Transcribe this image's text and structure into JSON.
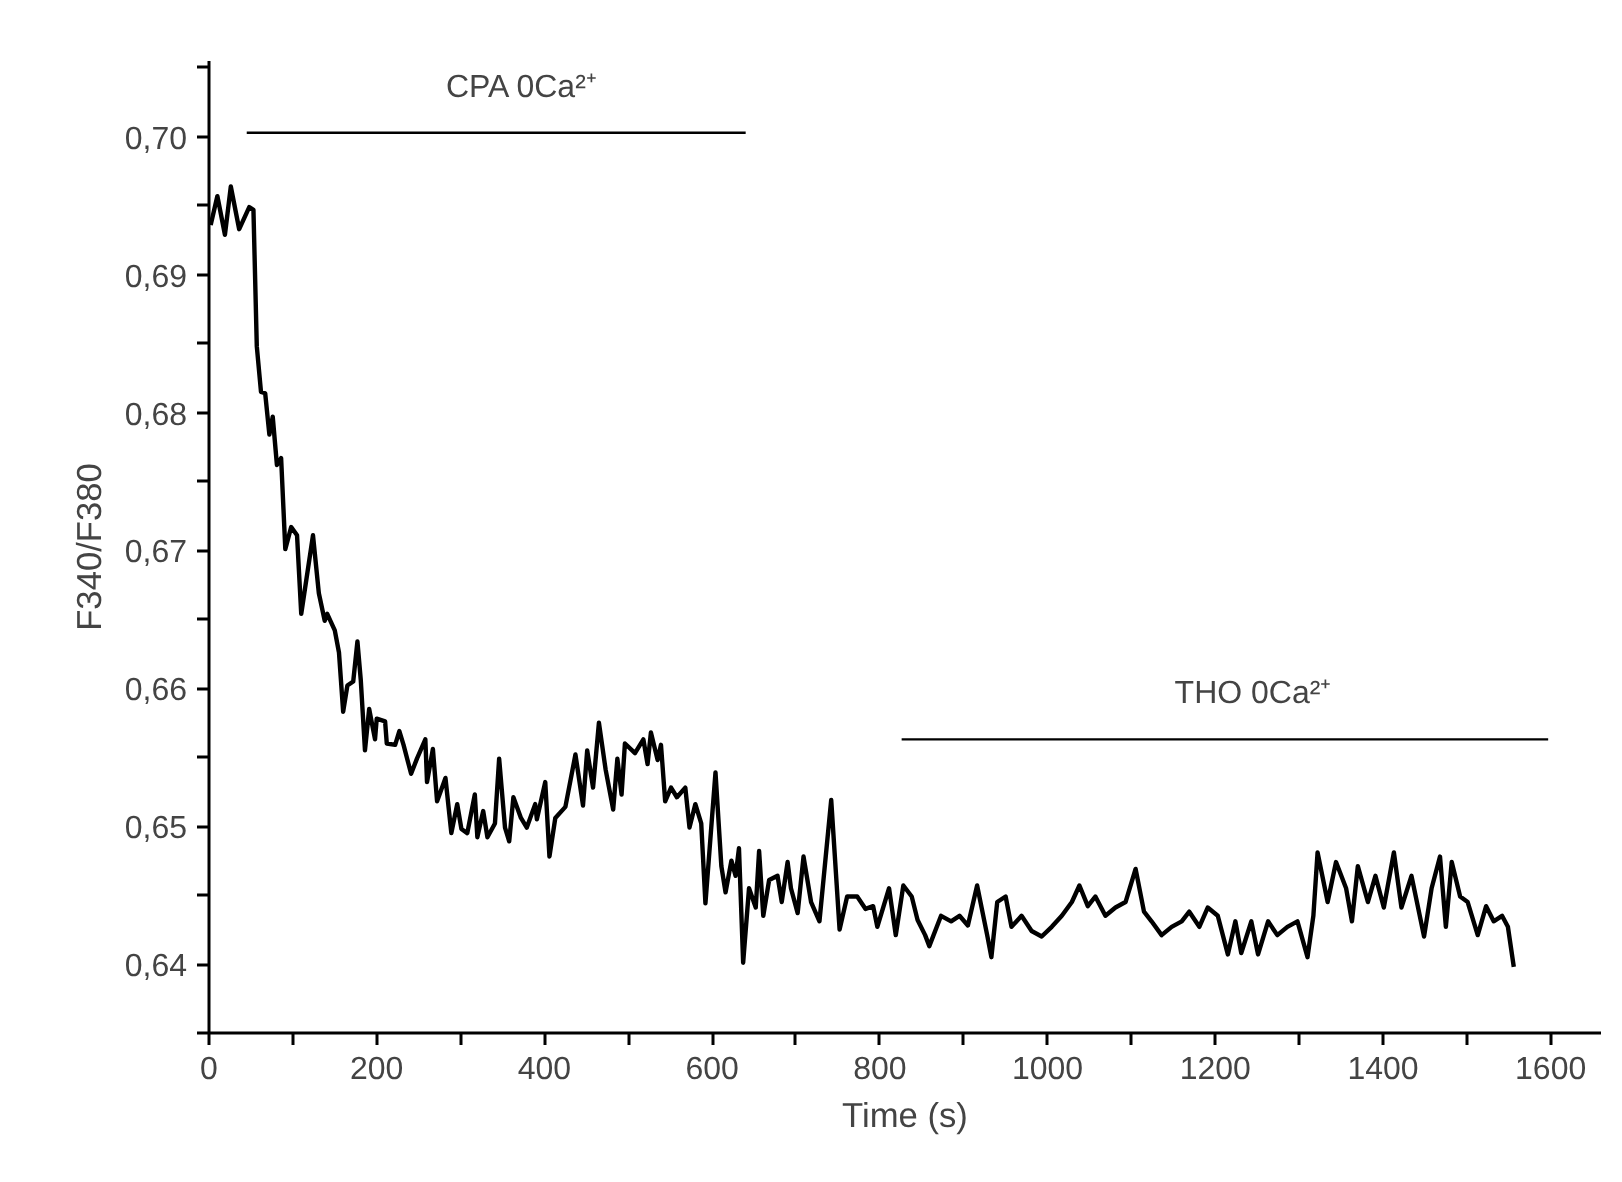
{
  "chart_data": {
    "type": "line",
    "xlabel": "Time (s)",
    "ylabel": "F340/F380",
    "xlim": [
      0,
      1660
    ],
    "ylim": [
      0.635,
      0.7055
    ],
    "xticks": [
      0,
      {
        "value": 100,
        "label": null
      },
      200,
      {
        "value": 300,
        "label": null
      },
      400,
      {
        "value": 500,
        "label": null
      },
      600,
      {
        "value": 700,
        "label": null
      },
      800,
      {
        "value": 900,
        "label": null
      },
      1000,
      {
        "value": 1100,
        "label": null
      },
      1200,
      {
        "value": 1300,
        "label": null
      },
      1400,
      {
        "value": 1500,
        "label": null
      },
      1600
    ],
    "yticks": [
      {
        "value": 0.635,
        "label": null
      },
      {
        "value": 0.64,
        "label": "0,64"
      },
      {
        "value": 0.645,
        "label": null
      },
      {
        "value": 0.65,
        "label": "0,65"
      },
      {
        "value": 0.655,
        "label": null
      },
      {
        "value": 0.66,
        "label": "0,66"
      },
      {
        "value": 0.665,
        "label": null
      },
      {
        "value": 0.67,
        "label": "0,67"
      },
      {
        "value": 0.675,
        "label": null
      },
      {
        "value": 0.68,
        "label": "0,68"
      },
      {
        "value": 0.685,
        "label": null
      },
      {
        "value": 0.69,
        "label": "0,69"
      },
      {
        "value": 0.695,
        "label": null
      },
      {
        "value": 0.7,
        "label": "0,70"
      },
      {
        "value": 0.705,
        "label": null
      }
    ],
    "grid": false,
    "legend": false,
    "line_style": "solid",
    "marker": "none",
    "series": [
      {
        "color": "#000000",
        "x": [
          2,
          10,
          19,
          26,
          36,
          48,
          53,
          57,
          62,
          67,
          72,
          76,
          81,
          86,
          91,
          98,
          105,
          110,
          124,
          131,
          138,
          141,
          150,
          155,
          160,
          165,
          172,
          177,
          181,
          186,
          191,
          198,
          200,
          210,
          212,
          222,
          227,
          232,
          241,
          248,
          258,
          260,
          267,
          272,
          282,
          289,
          296,
          301,
          308,
          317,
          320,
          327,
          332,
          341,
          346,
          353,
          358,
          363,
          372,
          379,
          389,
          391,
          401,
          406,
          413,
          425,
          437,
          446,
          451,
          458,
          465,
          473,
          482,
          487,
          492,
          496,
          508,
          518,
          523,
          527,
          535,
          539,
          544,
          551,
          558,
          568,
          573,
          580,
          587,
          592,
          604,
          611,
          616,
          623,
          628,
          632,
          637,
          644,
          652,
          656,
          661,
          668,
          678,
          683,
          690,
          694,
          702,
          709,
          718,
          728,
          742,
          752,
          761,
          773,
          783,
          792,
          797,
          811,
          819,
          828,
          838,
          845,
          854,
          859,
          873,
          885,
          895,
          905,
          916,
          928,
          933,
          940,
          950,
          957,
          969,
          981,
          993,
          1005,
          1017,
          1029,
          1038,
          1048,
          1057,
          1069,
          1081,
          1093,
          1105,
          1115,
          1124,
          1136,
          1148,
          1160,
          1169,
          1181,
          1191,
          1203,
          1215,
          1224,
          1231,
          1243,
          1251,
          1263,
          1274,
          1286,
          1298,
          1310,
          1317,
          1322,
          1334,
          1344,
          1356,
          1363,
          1370,
          1382,
          1391,
          1401,
          1413,
          1422,
          1434,
          1449,
          1458,
          1468,
          1475,
          1482,
          1492,
          1501,
          1513,
          1523,
          1532,
          1542,
          1549,
          1556
        ],
        "values": [
          0.6936,
          0.6957,
          0.6929,
          0.6964,
          0.6933,
          0.6949,
          0.6947,
          0.6848,
          0.6815,
          0.6814,
          0.6784,
          0.6797,
          0.6762,
          0.6767,
          0.6701,
          0.6717,
          0.6711,
          0.6654,
          0.6711,
          0.6669,
          0.6649,
          0.6654,
          0.6642,
          0.6626,
          0.6583,
          0.6602,
          0.6605,
          0.6634,
          0.6606,
          0.6555,
          0.6585,
          0.6563,
          0.6578,
          0.6576,
          0.656,
          0.6559,
          0.6569,
          0.6559,
          0.6538,
          0.6549,
          0.6563,
          0.6532,
          0.6556,
          0.6518,
          0.6535,
          0.6495,
          0.6516,
          0.6498,
          0.6495,
          0.6523,
          0.6492,
          0.6511,
          0.6492,
          0.6502,
          0.6549,
          0.6499,
          0.6489,
          0.6521,
          0.6506,
          0.6499,
          0.6516,
          0.6505,
          0.6532,
          0.6478,
          0.6506,
          0.6514,
          0.6552,
          0.6515,
          0.6555,
          0.6528,
          0.6575,
          0.6541,
          0.6512,
          0.6549,
          0.6523,
          0.656,
          0.6553,
          0.6563,
          0.6545,
          0.6568,
          0.6548,
          0.6559,
          0.6518,
          0.6528,
          0.6521,
          0.6528,
          0.6499,
          0.6516,
          0.6502,
          0.6444,
          0.6539,
          0.6471,
          0.6452,
          0.6475,
          0.6464,
          0.6484,
          0.6401,
          0.6455,
          0.6441,
          0.6482,
          0.6435,
          0.6461,
          0.6464,
          0.6445,
          0.6474,
          0.6455,
          0.6437,
          0.6478,
          0.6445,
          0.6431,
          0.6519,
          0.6425,
          0.6449,
          0.6449,
          0.644,
          0.6442,
          0.6427,
          0.6455,
          0.6421,
          0.6457,
          0.6449,
          0.6432,
          0.6421,
          0.6413,
          0.6435,
          0.6431,
          0.6435,
          0.6428,
          0.6457,
          0.6421,
          0.6405,
          0.6445,
          0.6449,
          0.6427,
          0.6435,
          0.6424,
          0.642,
          0.6427,
          0.6435,
          0.6445,
          0.6457,
          0.6442,
          0.6449,
          0.6435,
          0.6441,
          0.6445,
          0.6469,
          0.6438,
          0.6431,
          0.6421,
          0.6427,
          0.6431,
          0.6438,
          0.6427,
          0.6441,
          0.6435,
          0.6407,
          0.6431,
          0.6408,
          0.6431,
          0.6407,
          0.6431,
          0.6421,
          0.6427,
          0.6431,
          0.6405,
          0.6435,
          0.6481,
          0.6445,
          0.6474,
          0.6455,
          0.6431,
          0.6471,
          0.6445,
          0.6464,
          0.6441,
          0.6481,
          0.6441,
          0.6464,
          0.642,
          0.6455,
          0.6478,
          0.6427,
          0.6474,
          0.6449,
          0.6445,
          0.6421,
          0.6442,
          0.6431,
          0.6435,
          0.6427,
          0.6398
        ]
      },
      {
        "type": "line",
        "name": "CPA 0Ca²⁺",
        "color": "#000000",
        "x": [
          45,
          640
        ],
        "values": [
          0.7003,
          0.7003
        ]
      },
      {
        "type": "line",
        "name": "THO  0Ca²⁺",
        "color": "#000000",
        "x": [
          826,
          1597
        ],
        "values": [
          0.6563,
          0.6563
        ]
      }
    ]
  }
}
